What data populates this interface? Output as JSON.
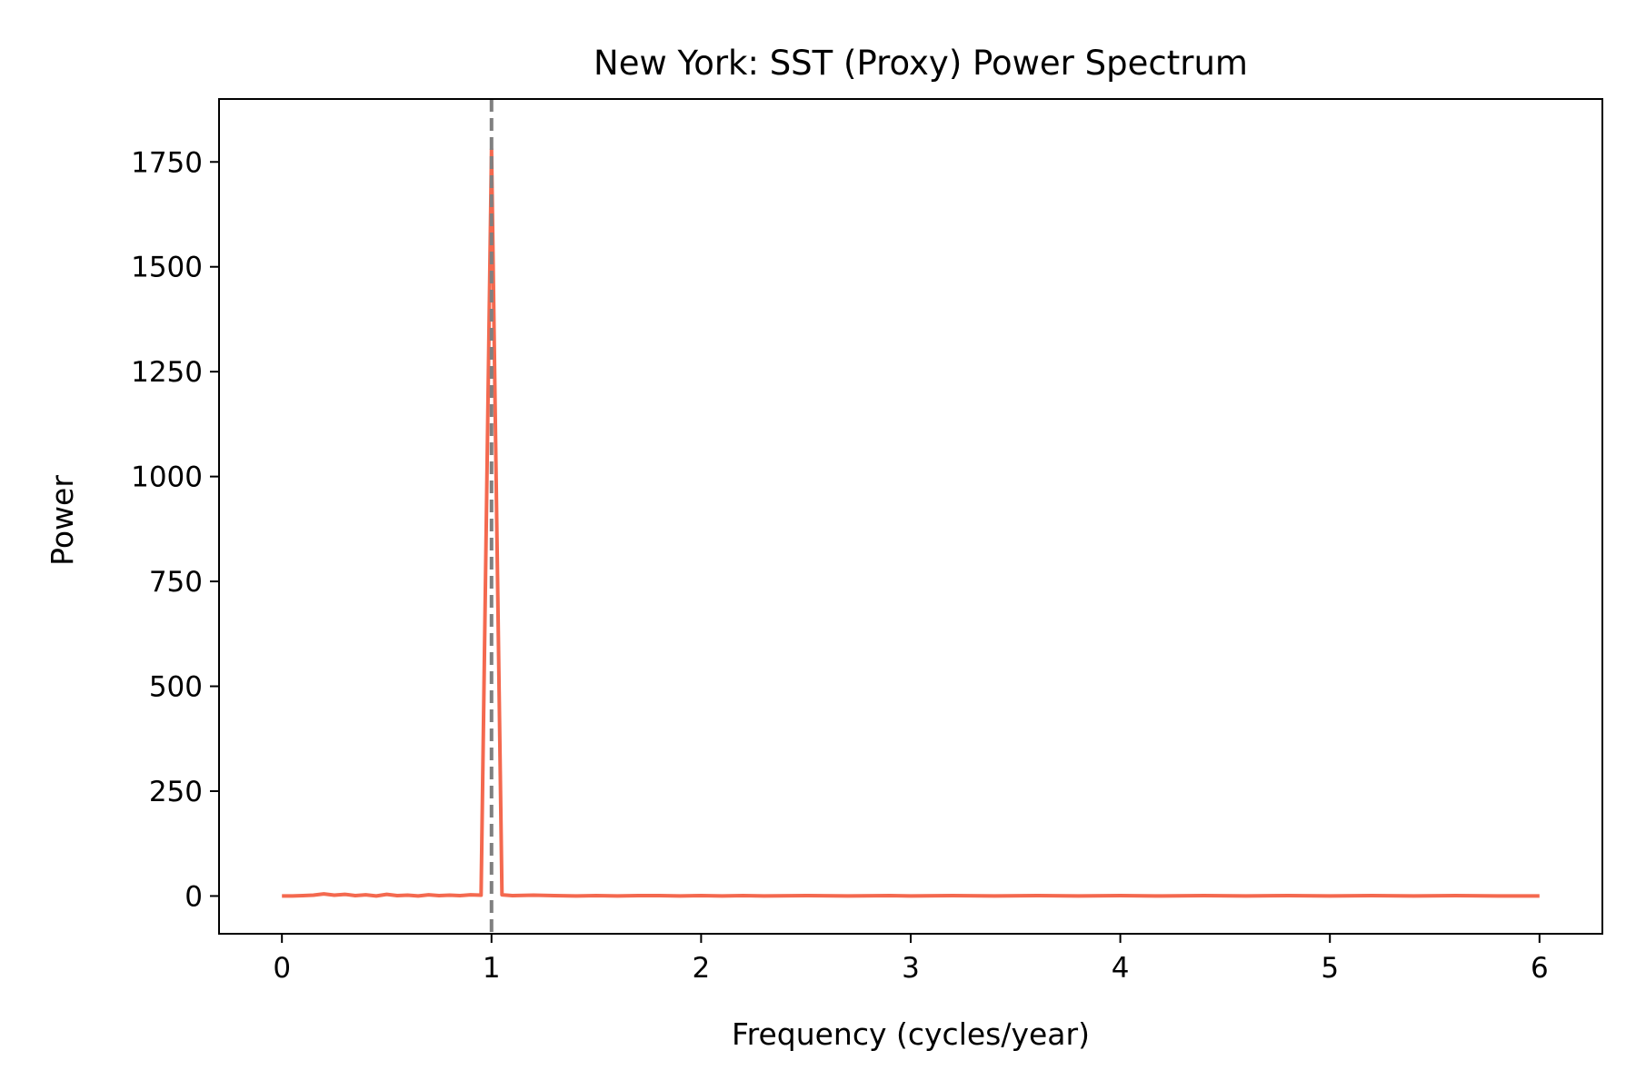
{
  "chart_data": {
    "type": "line",
    "title": "New York: SST (Proxy) Power Spectrum",
    "xlabel": "Frequency (cycles/year)",
    "ylabel": "Power",
    "xlim": [
      -0.3,
      6.3
    ],
    "ylim": [
      -90,
      1900
    ],
    "xticks": [
      0,
      1,
      2,
      3,
      4,
      5,
      6
    ],
    "yticks": [
      0,
      250,
      500,
      750,
      1000,
      1250,
      1500,
      1750
    ],
    "grid": false,
    "legend": "none",
    "line_color": "#f4694f",
    "reference_line": {
      "x": 1.0,
      "color": "#808080",
      "style": "dashed"
    },
    "series": [
      {
        "x": [
          0,
          0.05,
          0.1,
          0.15,
          0.2,
          0.25,
          0.3,
          0.35,
          0.4,
          0.45,
          0.5,
          0.55,
          0.6,
          0.65,
          0.7,
          0.75,
          0.8,
          0.85,
          0.9,
          0.95,
          1.0,
          1.05,
          1.1,
          1.2,
          1.3,
          1.4,
          1.5,
          1.6,
          1.7,
          1.8,
          1.9,
          2.0,
          2.1,
          2.2,
          2.3,
          2.5,
          2.7,
          2.9,
          3.0,
          3.2,
          3.4,
          3.6,
          3.8,
          4.0,
          4.2,
          4.4,
          4.6,
          4.8,
          5.0,
          5.2,
          5.4,
          5.6,
          5.8,
          6.0
        ],
        "y": [
          0,
          0,
          1,
          2,
          5,
          2,
          4,
          1,
          3,
          0,
          4,
          1,
          2,
          0,
          3,
          1,
          2,
          1,
          3,
          2,
          1780,
          3,
          1,
          2,
          1,
          0,
          1,
          0,
          1,
          1,
          0,
          1,
          0,
          1,
          0,
          1,
          0,
          1,
          0,
          1,
          0,
          1,
          0,
          1,
          0,
          1,
          0,
          1,
          0,
          1,
          0,
          1,
          0,
          0
        ]
      }
    ]
  }
}
